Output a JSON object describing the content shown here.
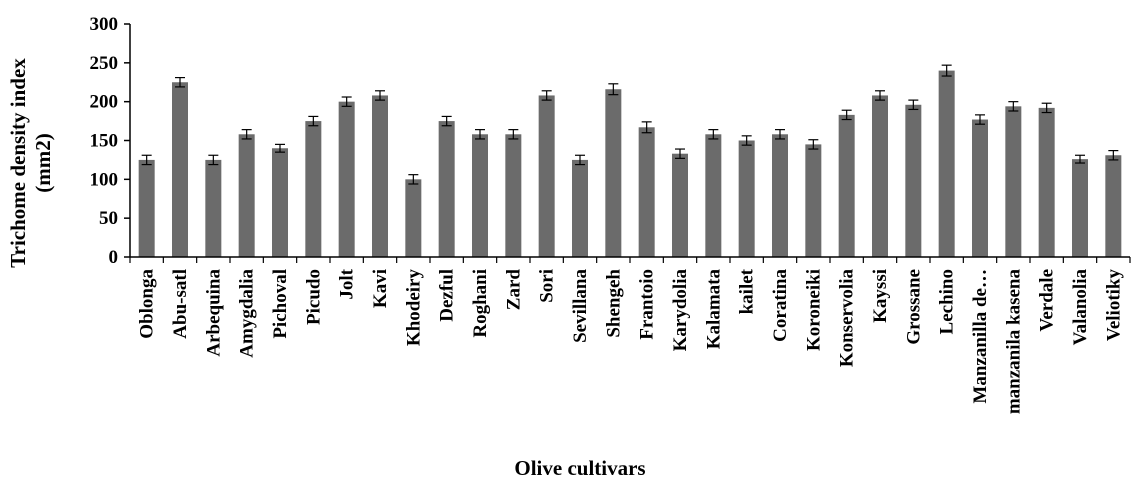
{
  "chart_data": {
    "type": "bar",
    "title": "",
    "xlabel": "Olive cultivars",
    "ylabel_line1": "Trichome density index",
    "ylabel_line2": "(mm2)",
    "ylim": [
      0,
      300
    ],
    "yticks": [
      "0",
      "50",
      "100",
      "150",
      "200",
      "250",
      "300"
    ],
    "grid": false,
    "legend": "none",
    "bar_color": "#6b6b6b",
    "categories": [
      "Oblonga",
      "Abu-satl",
      "Arbequina",
      "Amygdalia",
      "Pichoval",
      "Picudo",
      "Jolt",
      "Kavi",
      "Khodeiry",
      "Dezful",
      "Roghani",
      "Zard",
      "Sori",
      "Sevillana",
      "Shengeh",
      "Frantoio",
      "Karydolia",
      "Kalamata",
      "kailet",
      "Coratina",
      "Koroneiki",
      "Konservolia",
      "Kayssi",
      "Grossane",
      "Lechino",
      "Manzanilla de…",
      "manzanila kasena",
      "Verdale",
      "Valanolia",
      "Veliotiky"
    ],
    "values": [
      125,
      225,
      125,
      158,
      140,
      175,
      200,
      208,
      100,
      175,
      158,
      158,
      208,
      125,
      216,
      167,
      133,
      158,
      150,
      158,
      145,
      183,
      208,
      196,
      240,
      177,
      194,
      192,
      126,
      131
    ],
    "errors": [
      6,
      6,
      6,
      6,
      5,
      6,
      6,
      6,
      6,
      6,
      6,
      6,
      6,
      6,
      7,
      7,
      6,
      6,
      6,
      6,
      6,
      6,
      6,
      6,
      7,
      6,
      6,
      6,
      5,
      6
    ]
  }
}
